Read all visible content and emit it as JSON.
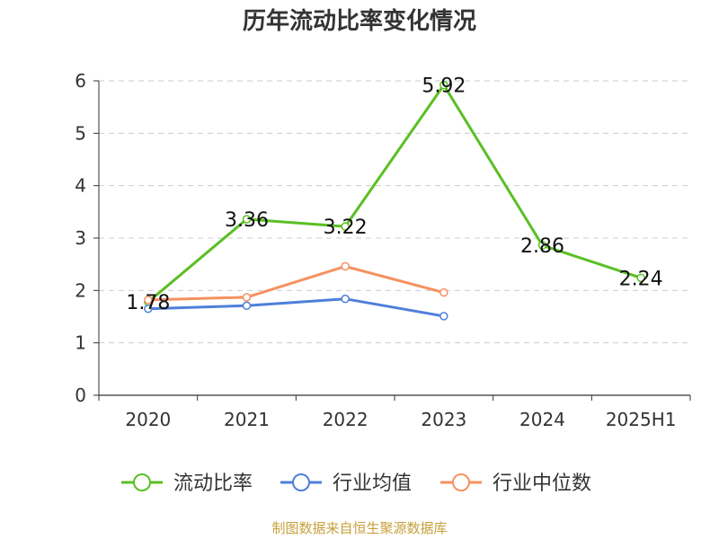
{
  "title": "历年流动比率变化情况",
  "source": "制图数据来自恒生聚源数据库",
  "colors": {
    "grid": "#cccccc",
    "axis": "#333333",
    "text": "#333333"
  },
  "chart_data": {
    "type": "line",
    "categories": [
      "2020",
      "2021",
      "2022",
      "2023",
      "2024",
      "2025H1"
    ],
    "ylim": [
      0,
      6
    ],
    "yticks": [
      "0",
      "1",
      "2",
      "3",
      "4",
      "5",
      "6"
    ],
    "grid": true,
    "legend_position": "bottom",
    "series": [
      {
        "name": "流动比率",
        "color": "#5bbf24",
        "values": [
          1.78,
          3.36,
          3.22,
          5.92,
          2.86,
          2.24
        ],
        "labels": [
          "1.78",
          "3.36",
          "3.22",
          "5.92",
          "2.86",
          "2.24"
        ],
        "show_labels": true
      },
      {
        "name": "行业均值",
        "color": "#4f7fda",
        "values": [
          1.65,
          1.71,
          1.84,
          1.51,
          null,
          null
        ],
        "show_labels": false
      },
      {
        "name": "行业中位数",
        "color": "#f59160",
        "values": [
          1.82,
          1.87,
          2.46,
          1.96,
          null,
          null
        ],
        "show_labels": false
      }
    ]
  }
}
